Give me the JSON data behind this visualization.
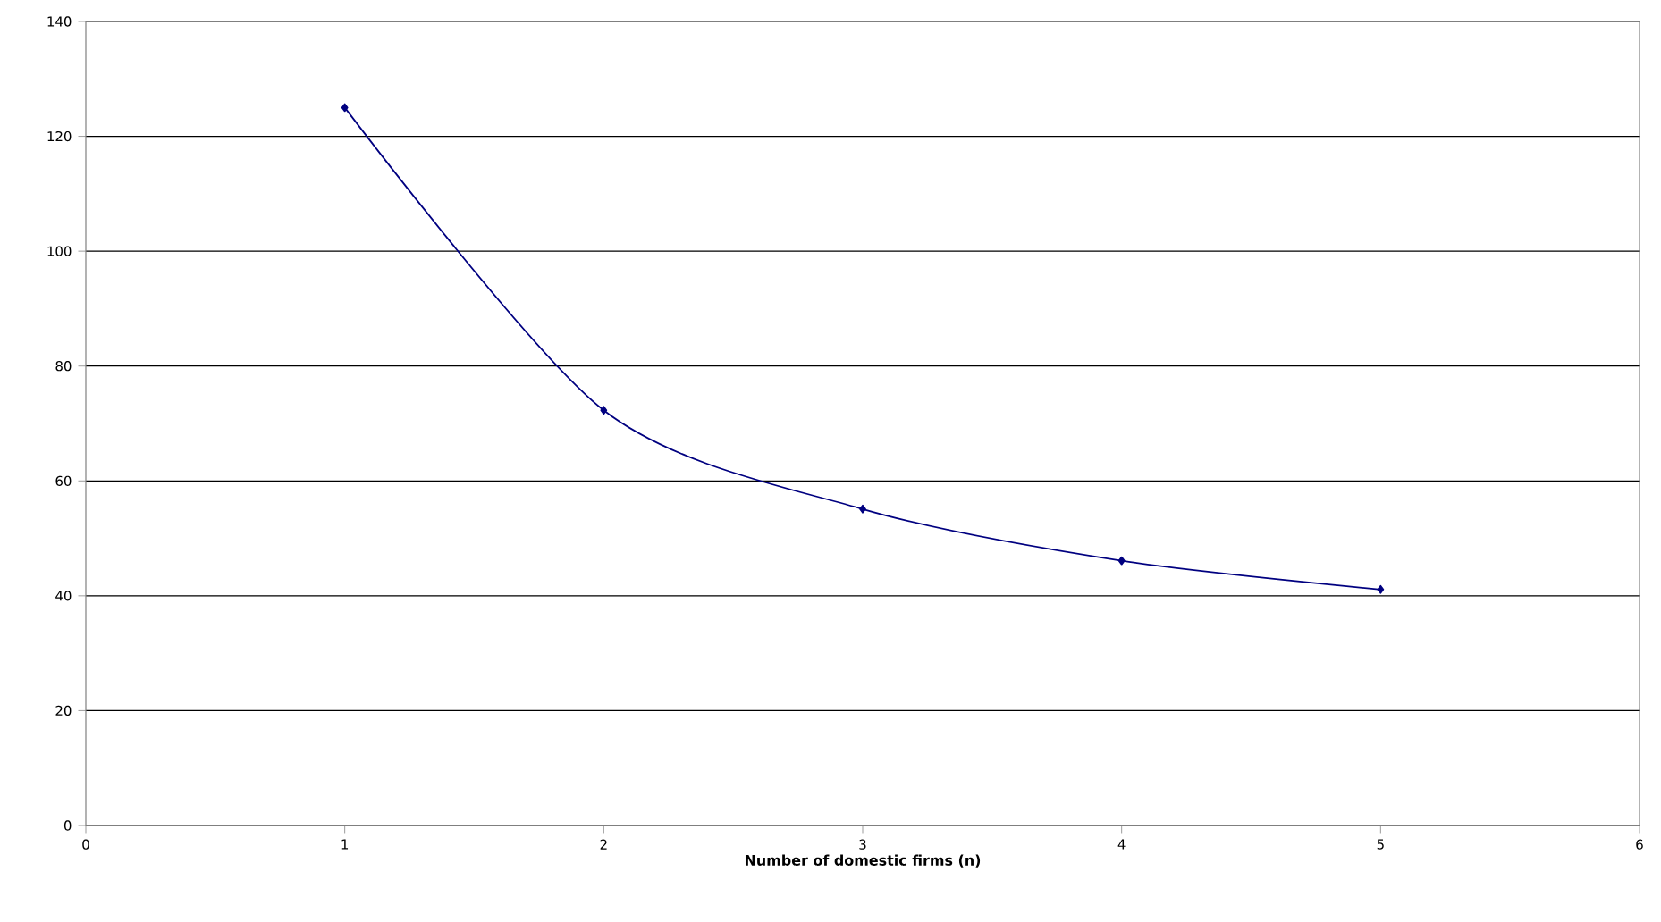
{
  "chart_data": {
    "type": "line",
    "xlabel": "Number of domestic firms (n)",
    "x": [
      1,
      2,
      3,
      4,
      5
    ],
    "series": [
      {
        "color": "#000080",
        "values": [
          125,
          72.3,
          55.1,
          46.1,
          41.1
        ]
      }
    ],
    "xlim": [
      0,
      6
    ],
    "xticks": [
      0,
      1,
      2,
      3,
      4,
      5,
      6
    ],
    "ylim": [
      0,
      140
    ],
    "yticks": [
      0,
      20,
      40,
      60,
      80,
      100,
      120,
      140
    ],
    "grid": "y",
    "marker": "diamond",
    "line_style": "solid"
  }
}
